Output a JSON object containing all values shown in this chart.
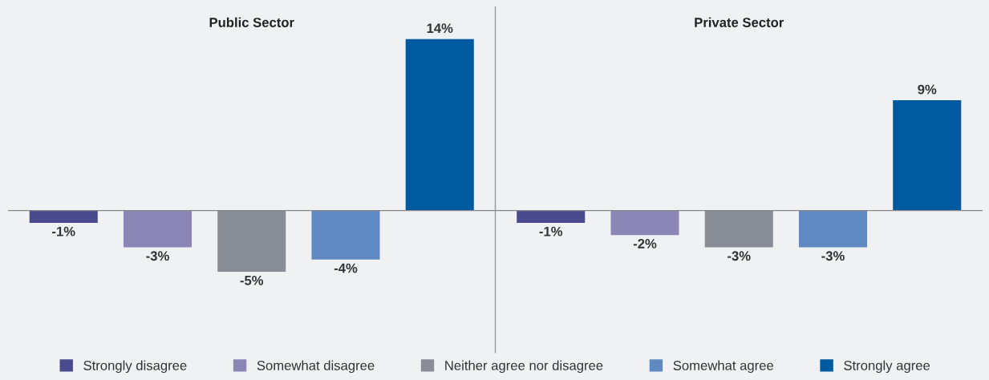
{
  "chart_data": {
    "type": "bar",
    "categories": [
      "Public Sector",
      "Private Sector"
    ],
    "legend": "bottom",
    "series": [
      {
        "name": "Strongly disagree",
        "color": "#4b4a8e",
        "values": [
          -1,
          -1
        ],
        "value_labels": [
          "-1%",
          "-1%"
        ]
      },
      {
        "name": "Somewhat disagree",
        "color": "#8c86b6",
        "values": [
          -3,
          -2
        ],
        "value_labels": [
          "-3%",
          "-2%"
        ]
      },
      {
        "name": "Neither agree nor disagree",
        "color": "#898d95",
        "values": [
          -5,
          -3
        ],
        "value_labels": [
          "-5%",
          "-3%"
        ]
      },
      {
        "name": "Somewhat agree",
        "color": "#5f89c1",
        "values": [
          -4,
          -3
        ],
        "value_labels": [
          "-4%",
          "-3%"
        ]
      },
      {
        "name": "Strongly agree",
        "color": "#005a9f",
        "values": [
          14,
          9
        ],
        "value_labels": [
          "14%",
          "9%"
        ]
      }
    ]
  }
}
